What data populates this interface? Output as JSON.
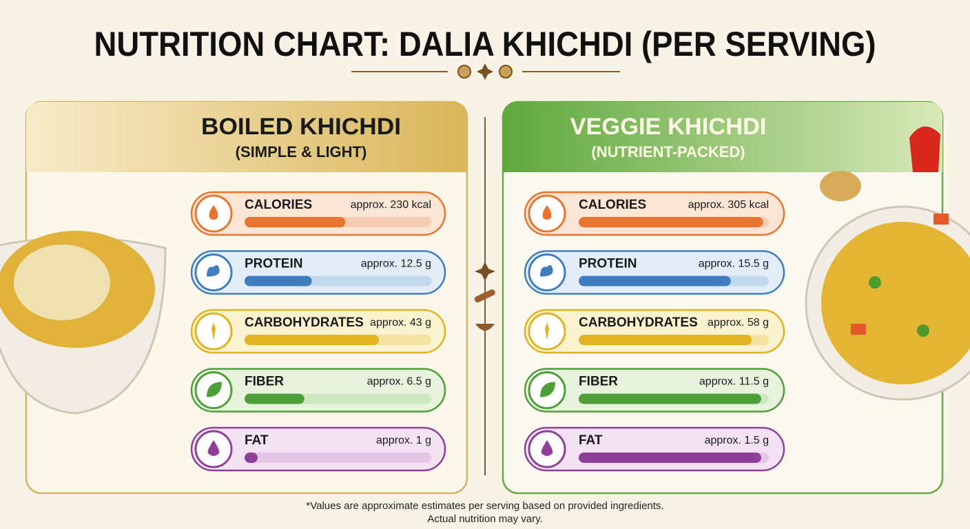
{
  "title": "NUTRITION CHART: DALIA KHICHDI (PER SERVING)",
  "panels": [
    {
      "title": "BOILED KHICHDI",
      "subtitle": "(SIMPLE & LIGHT)",
      "items": [
        {
          "label": "CALORIES",
          "value": "approx. 230 kcal",
          "fill": 54
        },
        {
          "label": "PROTEIN",
          "value": "approx. 12.5 g",
          "fill": 36
        },
        {
          "label": "CARBOHYDRATES",
          "value": "approx. 43 g",
          "fill": 72
        },
        {
          "label": "FIBER",
          "value": "approx. 6.5 g",
          "fill": 32
        },
        {
          "label": "FAT",
          "value": "approx. 1 g",
          "fill": 7
        }
      ]
    },
    {
      "title": "VEGGIE KHICHDI",
      "subtitle": "(NUTRIENT-PACKED)",
      "items": [
        {
          "label": "CALORIES",
          "value": "approx. 305 kcal",
          "fill": 97
        },
        {
          "label": "PROTEIN",
          "value": "approx. 15.5 g",
          "fill": 80
        },
        {
          "label": "CARBOHYDRATES",
          "value": "approx. 58 g",
          "fill": 91
        },
        {
          "label": "FIBER",
          "value": "approx. 11.5 g",
          "fill": 96
        },
        {
          "label": "FAT",
          "value": "approx. 1.5 g",
          "fill": 96
        }
      ]
    }
  ],
  "footnote": [
    "*Values are approximate estimates per serving based on provided ingredients.",
    "Actual nutrition may vary."
  ]
}
